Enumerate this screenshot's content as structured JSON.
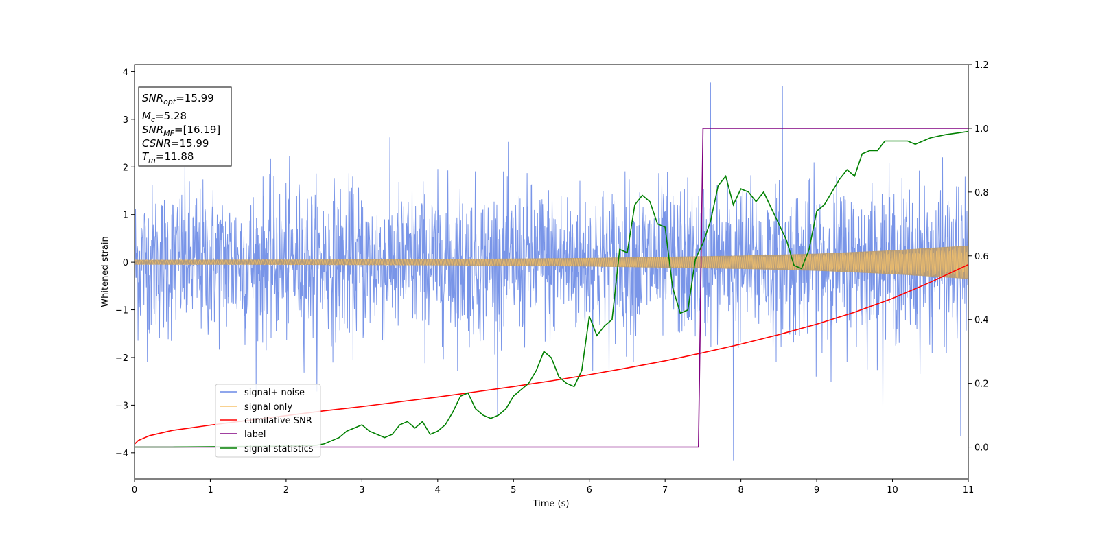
{
  "chart_data": {
    "type": "line",
    "title": "",
    "xlabel": "Time (s)",
    "ylabel": "Whitened strain",
    "xlim": [
      0,
      11
    ],
    "ylim": [
      -4.55,
      4.15
    ],
    "y2lim": [
      -0.1,
      1.2
    ],
    "xticks": [
      0,
      1,
      2,
      3,
      4,
      5,
      6,
      7,
      8,
      9,
      10,
      11
    ],
    "yticks": [
      -4,
      -3,
      -2,
      -1,
      0,
      1,
      2,
      3,
      4
    ],
    "y2ticks": [
      0.0,
      0.2,
      0.4,
      0.6,
      0.8,
      1.0,
      1.2
    ],
    "grid": false,
    "legend_position": "lower-left",
    "annotation": {
      "snr_opt": "15.99",
      "mc": "5.28",
      "snr_mf": "[16.19]",
      "csnr": "15.99",
      "tm": "11.88"
    },
    "series": [
      {
        "name": "signal+ noise",
        "color": "#6a89e5",
        "axis": "left",
        "description_type": "noise_band",
        "sigma": 0.8,
        "typical_range": [
          -2.2,
          2.6
        ],
        "max": 3.77,
        "min": -4.17
      },
      {
        "name": "signal only",
        "color": "#f5c26b",
        "axis": "left",
        "description_type": "chirp_envelope",
        "amplitude_points": [
          [
            0,
            0.05
          ],
          [
            2,
            0.055
          ],
          [
            4,
            0.065
          ],
          [
            6,
            0.09
          ],
          [
            8,
            0.14
          ],
          [
            9,
            0.18
          ],
          [
            10,
            0.25
          ],
          [
            11,
            0.35
          ]
        ]
      },
      {
        "name": "cumilative SNR",
        "color": "#ff0000",
        "axis": "left",
        "x": [
          0,
          0.05,
          0.2,
          0.5,
          1,
          1.5,
          2,
          2.5,
          3,
          3.5,
          4,
          4.5,
          5,
          5.5,
          6,
          6.5,
          7,
          7.5,
          8,
          8.5,
          9,
          9.5,
          10,
          10.5,
          11
        ],
        "y": [
          -3.82,
          -3.74,
          -3.64,
          -3.53,
          -3.42,
          -3.32,
          -3.22,
          -3.12,
          -3.03,
          -2.93,
          -2.83,
          -2.72,
          -2.61,
          -2.49,
          -2.36,
          -2.22,
          -2.07,
          -1.9,
          -1.72,
          -1.52,
          -1.3,
          -1.05,
          -0.76,
          -0.42,
          -0.05
        ]
      },
      {
        "name": "label",
        "color": "#800080",
        "axis": "right",
        "x": [
          0,
          7.44,
          7.5,
          11
        ],
        "y": [
          0,
          0,
          1,
          1
        ]
      },
      {
        "name": "signal statistics",
        "color": "#008000",
        "axis": "right",
        "x": [
          0,
          0.5,
          1.0,
          1.5,
          2.0,
          2.2,
          2.4,
          2.5,
          2.6,
          2.7,
          2.8,
          2.9,
          3.0,
          3.1,
          3.2,
          3.3,
          3.4,
          3.5,
          3.6,
          3.7,
          3.8,
          3.9,
          4.0,
          4.1,
          4.2,
          4.3,
          4.4,
          4.5,
          4.6,
          4.7,
          4.8,
          4.9,
          5.0,
          5.1,
          5.2,
          5.3,
          5.4,
          5.5,
          5.6,
          5.7,
          5.8,
          5.9,
          6.0,
          6.1,
          6.2,
          6.3,
          6.4,
          6.5,
          6.6,
          6.7,
          6.8,
          6.9,
          7.0,
          7.1,
          7.2,
          7.3,
          7.4,
          7.5,
          7.6,
          7.7,
          7.8,
          7.9,
          8.0,
          8.1,
          8.2,
          8.3,
          8.4,
          8.5,
          8.6,
          8.7,
          8.8,
          8.9,
          9.0,
          9.1,
          9.2,
          9.3,
          9.4,
          9.5,
          9.6,
          9.7,
          9.8,
          9.9,
          10.0,
          10.1,
          10.2,
          10.3,
          10.5,
          10.7,
          11.0
        ],
        "y": [
          0.0,
          0.0,
          0.001,
          0.002,
          0.003,
          0.004,
          0.006,
          0.01,
          0.02,
          0.03,
          0.05,
          0.06,
          0.07,
          0.05,
          0.04,
          0.03,
          0.04,
          0.07,
          0.08,
          0.06,
          0.08,
          0.04,
          0.05,
          0.07,
          0.11,
          0.16,
          0.17,
          0.12,
          0.1,
          0.09,
          0.1,
          0.12,
          0.16,
          0.18,
          0.2,
          0.24,
          0.3,
          0.28,
          0.22,
          0.2,
          0.19,
          0.24,
          0.41,
          0.35,
          0.38,
          0.4,
          0.62,
          0.61,
          0.76,
          0.79,
          0.77,
          0.7,
          0.69,
          0.5,
          0.42,
          0.43,
          0.59,
          0.64,
          0.71,
          0.82,
          0.85,
          0.76,
          0.81,
          0.8,
          0.77,
          0.8,
          0.75,
          0.7,
          0.65,
          0.57,
          0.56,
          0.62,
          0.74,
          0.76,
          0.8,
          0.84,
          0.87,
          0.85,
          0.92,
          0.93,
          0.93,
          0.96,
          0.96,
          0.96,
          0.96,
          0.95,
          0.97,
          0.98,
          0.99
        ]
      }
    ]
  }
}
